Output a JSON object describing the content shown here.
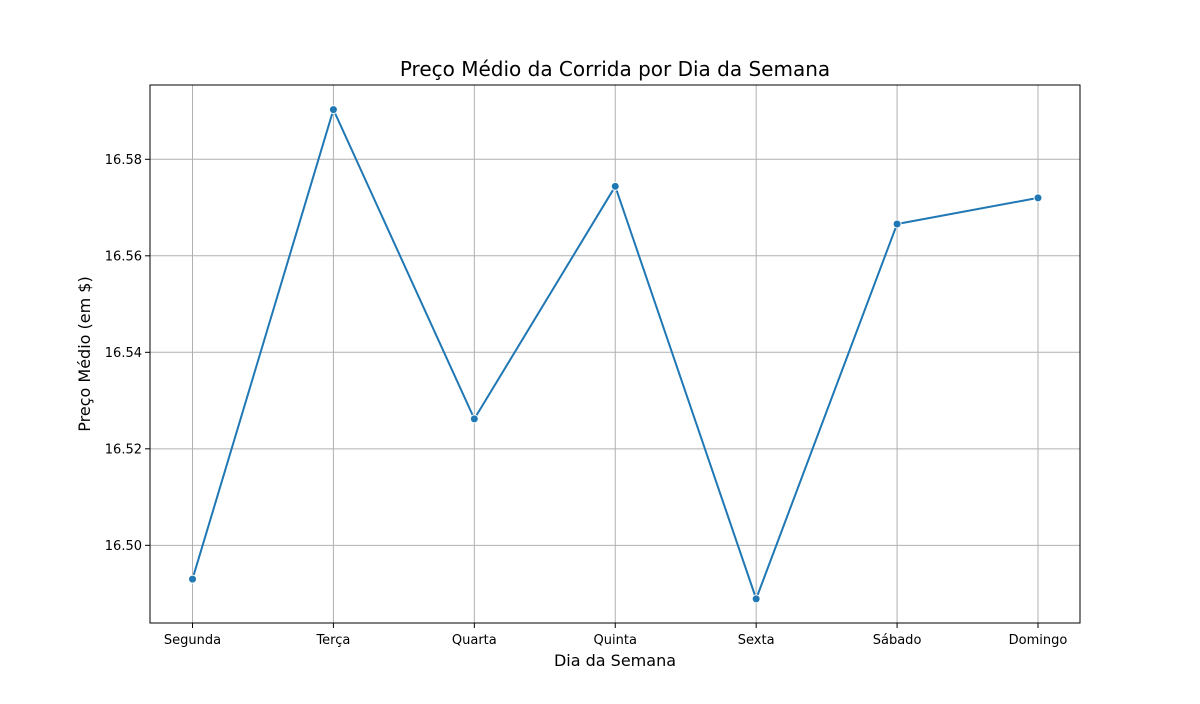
{
  "chart_data": {
    "type": "line",
    "title": "Preço Médio da Corrida por Dia da Semana",
    "xlabel": "Dia da Semana",
    "ylabel": "Preço Médio (em $)",
    "categories": [
      "Segunda",
      "Terça",
      "Quarta",
      "Quinta",
      "Sexta",
      "Sábado",
      "Domingo"
    ],
    "series": [
      {
        "values": [
          16.493,
          16.5903,
          16.5262,
          16.5744,
          16.4889,
          16.5666,
          16.572
        ],
        "color": "#1f77b4",
        "marker": "circle"
      }
    ],
    "yticks": [
      16.5,
      16.52,
      16.54,
      16.56,
      16.58
    ],
    "ytick_labels": [
      "16.50",
      "16.52",
      "16.54",
      "16.56",
      "16.58"
    ],
    "ylim": [
      16.4839,
      16.5954
    ],
    "grid": true,
    "legend": "none"
  }
}
